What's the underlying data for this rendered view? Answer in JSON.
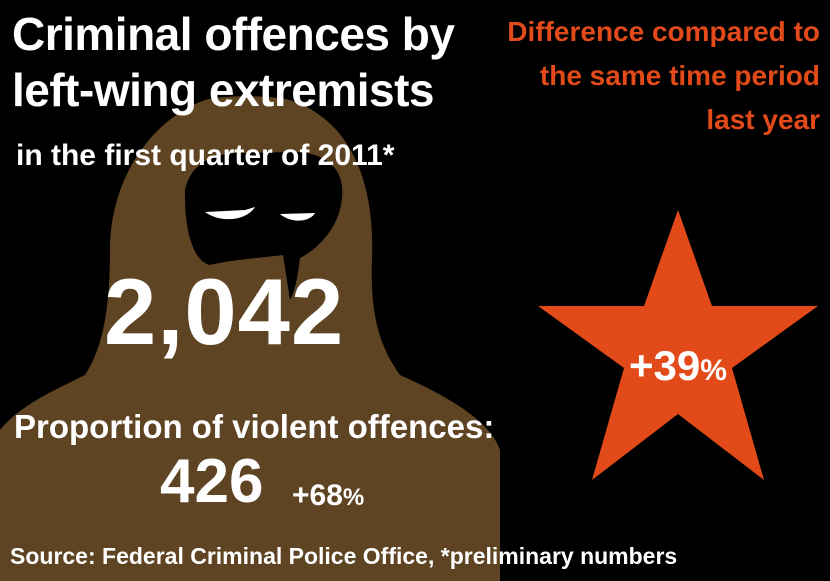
{
  "infographic": {
    "title_line1": "Criminal offences by",
    "title_line2": "left-wing extremists",
    "subtitle": "in the first quarter of 2011*",
    "total_offences": "2,042",
    "violent_label": "Proportion of violent offences:",
    "violent_value": "426",
    "violent_change": "+68",
    "violent_change_unit": "%",
    "difference_label": "Difference compared to the same time period last year",
    "difference_value": "+39",
    "difference_unit": "%",
    "source": "Source: Federal Criminal Police Office, *preliminary numbers"
  },
  "colors": {
    "background": "#000000",
    "figure": "#5e4423",
    "accent": "#e24a1a",
    "text": "#ffffff"
  },
  "icons": [
    "hooded-masked-figure-illustration",
    "star-icon"
  ]
}
